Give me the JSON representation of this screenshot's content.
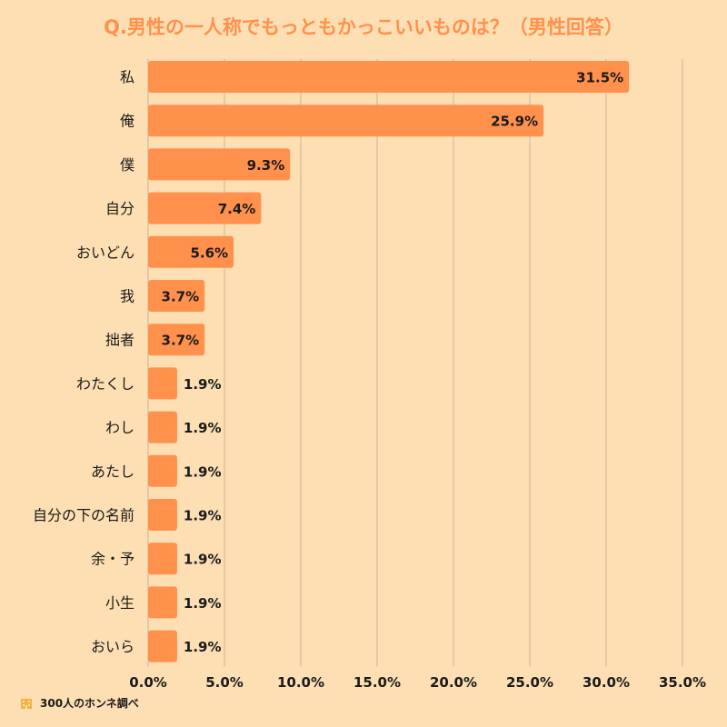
{
  "chart_data": {
    "type": "bar",
    "orientation": "horizontal",
    "title": "Q.男性の一人称でもっともかっこいいものは？（男性回答）",
    "categories": [
      "私",
      "俺",
      "僕",
      "自分",
      "おいどん",
      "我",
      "拙者",
      "わたくし",
      "わし",
      "あたし",
      "自分の下の名前",
      "余・予",
      "小生",
      "おいら"
    ],
    "values": [
      31.5,
      25.9,
      9.3,
      7.4,
      5.6,
      3.7,
      3.7,
      1.9,
      1.9,
      1.9,
      1.9,
      1.9,
      1.9,
      1.9
    ],
    "value_labels": [
      "31.5%",
      "25.9%",
      "9.3%",
      "7.4%",
      "5.6%",
      "3.7%",
      "3.7%",
      "1.9%",
      "1.9%",
      "1.9%",
      "1.9%",
      "1.9%",
      "1.9%",
      "1.9%"
    ],
    "xlim": [
      0,
      35
    ],
    "xticks": [
      "0.0%",
      "5.0%",
      "10.0%",
      "15.0%",
      "20.0%",
      "25.0%",
      "30.0%",
      "35.0%"
    ],
    "xlabel": "",
    "ylabel": "",
    "grid": "vertical",
    "colors": {
      "bar": "#FF914D",
      "background": "#FDDFB3",
      "title": "#FF914D",
      "grid": "#C9B497"
    }
  },
  "source": {
    "text": "300人のホンネ調べ",
    "icon": "building-icon"
  }
}
